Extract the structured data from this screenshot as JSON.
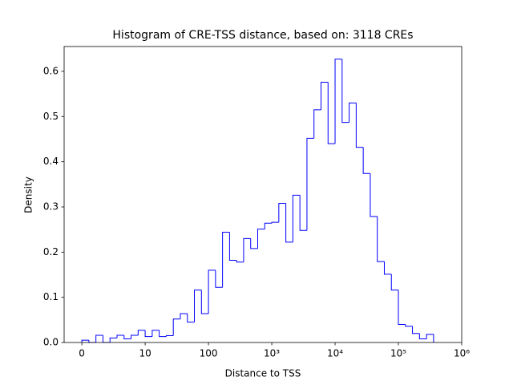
{
  "chart_data": {
    "type": "histogram",
    "title": "Histogram of CRE-TSS distance, based on: 3118 CREs",
    "x_label": "Distance to TSS",
    "y_label": "Density",
    "xscale": "symlog",
    "linthresh": 10,
    "color": "#0000ff",
    "bins": [
      0,
      1.111,
      2.222,
      3.333,
      4.444,
      5.556,
      6.667,
      7.778,
      8.889,
      10,
      12.92,
      16.68,
      21.54,
      27.83,
      35.94,
      46.42,
      59.95,
      77.43,
      100,
      129.2,
      166.8,
      215.4,
      278.3,
      359.4,
      464.2,
      599.5,
      774.3,
      1000,
      1292,
      1668,
      2154,
      2783,
      3594,
      4642,
      5995,
      7743,
      10000,
      12915,
      16681,
      21544,
      27826,
      35938,
      46416,
      59948,
      77426,
      100000,
      129155,
      166810,
      215443,
      278256,
      359381
    ],
    "values": [
      0.005,
      0.0,
      0.016,
      0.0,
      0.01,
      0.016,
      0.008,
      0.016,
      0.027,
      0.013,
      0.027,
      0.013,
      0.015,
      0.052,
      0.064,
      0.045,
      0.116,
      0.064,
      0.16,
      0.122,
      0.244,
      0.182,
      0.178,
      0.23,
      0.208,
      0.251,
      0.264,
      0.266,
      0.308,
      0.222,
      0.326,
      0.248,
      0.452,
      0.515,
      0.576,
      0.44,
      0.627,
      0.487,
      0.53,
      0.432,
      0.374,
      0.279,
      0.179,
      0.151,
      0.116,
      0.04,
      0.036,
      0.02,
      0.008,
      0.018
    ],
    "xlim": [
      -2.8,
      1000000
    ],
    "xticks": [
      0,
      10,
      100,
      {
        "value": 1000,
        "label": "10³"
      },
      {
        "value": 10000,
        "label": "10⁴"
      },
      {
        "value": 100000,
        "label": "10⁵"
      },
      {
        "value": 1000000,
        "label": "10⁶"
      }
    ],
    "ylim": [
      0,
      0.655
    ],
    "yticks": [
      {
        "value": 0,
        "label": "0.0"
      },
      0.1,
      0.2,
      0.3,
      0.4,
      0.5,
      0.6
    ]
  }
}
